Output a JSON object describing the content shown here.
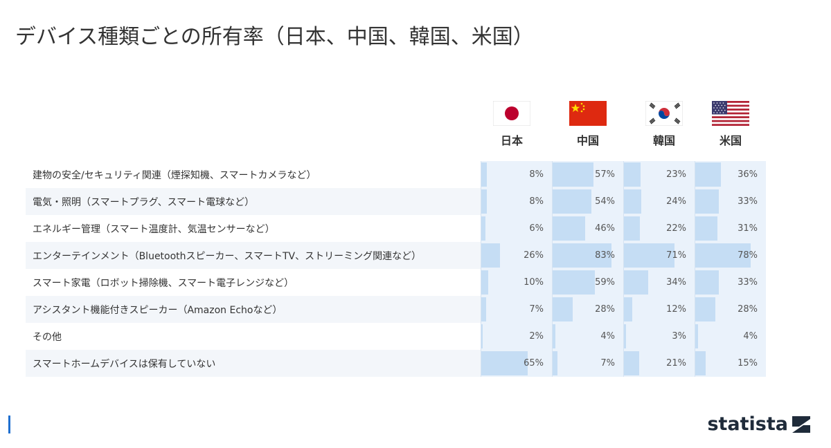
{
  "title": "デバイス種類ごとの所有率（日本、中国、韓国、米国）",
  "brand": "statista",
  "colors": {
    "bar": "#c5ddf4",
    "cell_bg": "#eaf2fb",
    "row_shade": "#f3f6fa",
    "brand": "#1f2b3a",
    "accent": "#1f6fcf"
  },
  "chart_data": {
    "type": "table",
    "columns": [
      "日本",
      "中国",
      "韓国",
      "米国"
    ],
    "value_unit": "%",
    "rows": [
      {
        "label": "建物の安全/セキュリティ関連（煙探知機、スマートカメラなど）",
        "values": [
          8,
          57,
          23,
          36
        ],
        "display": [
          "8%",
          "57%",
          "23%",
          "36%"
        ]
      },
      {
        "label": "電気・照明（スマートプラグ、スマート電球など）",
        "values": [
          8,
          54,
          24,
          33
        ],
        "display": [
          "8%",
          "54%",
          "24%",
          "33%"
        ]
      },
      {
        "label": "エネルギー管理（スマート温度計、気温センサーなど）",
        "values": [
          6,
          46,
          22,
          31
        ],
        "display": [
          "6%",
          "46%",
          "22%",
          "31%"
        ]
      },
      {
        "label": "エンターテインメント（Bluetoothスピーカー、スマートTV、ストリーミング関連など）",
        "values": [
          26,
          83,
          71,
          78
        ],
        "display": [
          "26%",
          "83%",
          "71%",
          "78%"
        ]
      },
      {
        "label": "スマート家電（ロボット掃除機、スマート電子レンジなど）",
        "values": [
          10,
          59,
          34,
          33
        ],
        "display": [
          "10%",
          "59%",
          "34%",
          "33%"
        ]
      },
      {
        "label": "アシスタント機能付きスピーカー（Amazon Echoなど）",
        "values": [
          7,
          28,
          12,
          28
        ],
        "display": [
          "7%",
          "28%",
          "12%",
          "28%"
        ]
      },
      {
        "label": "その他",
        "values": [
          2,
          4,
          3,
          4
        ],
        "display": [
          "2%",
          "4%",
          "3%",
          "4%"
        ]
      },
      {
        "label": "スマートホームデバイスは保有していない",
        "values": [
          65,
          7,
          21,
          15
        ],
        "display": [
          "65%",
          "7%",
          "21%",
          "15%"
        ]
      }
    ]
  }
}
